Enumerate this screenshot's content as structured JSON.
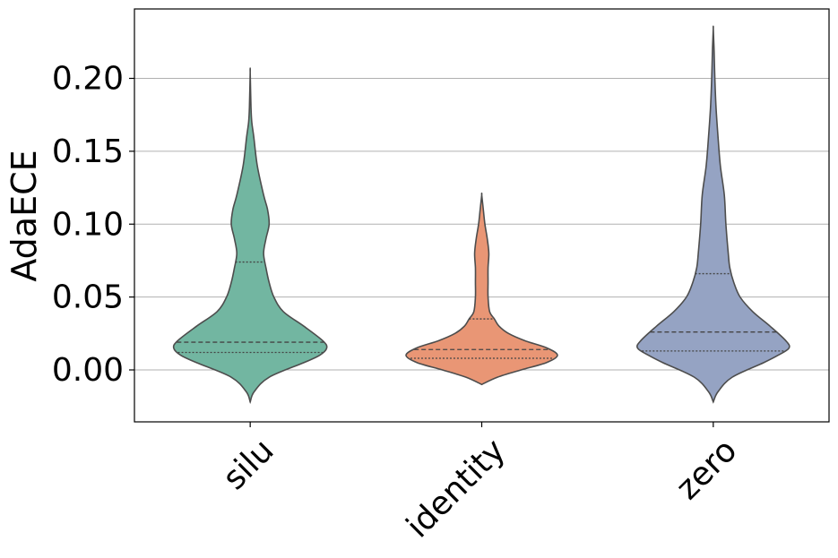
{
  "chart_data": {
    "type": "violin",
    "title": "",
    "xlabel": "",
    "ylabel": "AdaECE",
    "ylim": [
      -0.035,
      0.245
    ],
    "yticks": [
      "0.00",
      "0.05",
      "0.10",
      "0.15",
      "0.20"
    ],
    "grid": "horizontal",
    "categories": [
      "silu",
      "identity",
      "zero"
    ],
    "colors": [
      "#72b6a1",
      "#e99675",
      "#95a3c3"
    ],
    "series": [
      {
        "category": "silu",
        "min": -0.022,
        "max": 0.204,
        "q1": 0.012,
        "median": 0.019,
        "q3": 0.074,
        "profile": [
          [
            -0.022,
            0.0
          ],
          [
            -0.015,
            0.05
          ],
          [
            -0.005,
            0.24
          ],
          [
            0.005,
            0.68
          ],
          [
            0.01,
            0.88
          ],
          [
            0.015,
            0.97
          ],
          [
            0.02,
            0.92
          ],
          [
            0.03,
            0.68
          ],
          [
            0.04,
            0.42
          ],
          [
            0.05,
            0.3
          ],
          [
            0.06,
            0.24
          ],
          [
            0.07,
            0.2
          ],
          [
            0.08,
            0.17
          ],
          [
            0.09,
            0.2
          ],
          [
            0.1,
            0.24
          ],
          [
            0.11,
            0.22
          ],
          [
            0.12,
            0.17
          ],
          [
            0.14,
            0.09
          ],
          [
            0.16,
            0.045
          ],
          [
            0.17,
            0.02
          ],
          [
            0.18,
            0.01
          ],
          [
            0.204,
            0.0
          ]
        ]
      },
      {
        "category": "identity",
        "min": -0.01,
        "max": 0.12,
        "q1": 0.008,
        "median": 0.014,
        "q3": 0.035,
        "profile": [
          [
            -0.01,
            0.0
          ],
          [
            -0.005,
            0.2
          ],
          [
            0.0,
            0.5
          ],
          [
            0.005,
            0.82
          ],
          [
            0.01,
            0.96
          ],
          [
            0.015,
            0.83
          ],
          [
            0.02,
            0.55
          ],
          [
            0.025,
            0.34
          ],
          [
            0.03,
            0.22
          ],
          [
            0.035,
            0.16
          ],
          [
            0.04,
            0.1
          ],
          [
            0.05,
            0.08
          ],
          [
            0.06,
            0.08
          ],
          [
            0.07,
            0.08
          ],
          [
            0.08,
            0.09
          ],
          [
            0.09,
            0.07
          ],
          [
            0.1,
            0.04
          ],
          [
            0.11,
            0.02
          ],
          [
            0.12,
            0.0
          ]
        ]
      },
      {
        "category": "zero",
        "min": -0.022,
        "max": 0.234,
        "q1": 0.013,
        "median": 0.026,
        "q3": 0.066,
        "profile": [
          [
            -0.022,
            0.0
          ],
          [
            -0.015,
            0.06
          ],
          [
            -0.005,
            0.24
          ],
          [
            0.005,
            0.64
          ],
          [
            0.01,
            0.82
          ],
          [
            0.015,
            0.96
          ],
          [
            0.02,
            0.92
          ],
          [
            0.03,
            0.72
          ],
          [
            0.04,
            0.5
          ],
          [
            0.05,
            0.34
          ],
          [
            0.06,
            0.26
          ],
          [
            0.07,
            0.21
          ],
          [
            0.08,
            0.19
          ],
          [
            0.1,
            0.16
          ],
          [
            0.12,
            0.14
          ],
          [
            0.14,
            0.09
          ],
          [
            0.16,
            0.06
          ],
          [
            0.18,
            0.035
          ],
          [
            0.2,
            0.02
          ],
          [
            0.22,
            0.01
          ],
          [
            0.234,
            0.0
          ]
        ]
      }
    ]
  }
}
